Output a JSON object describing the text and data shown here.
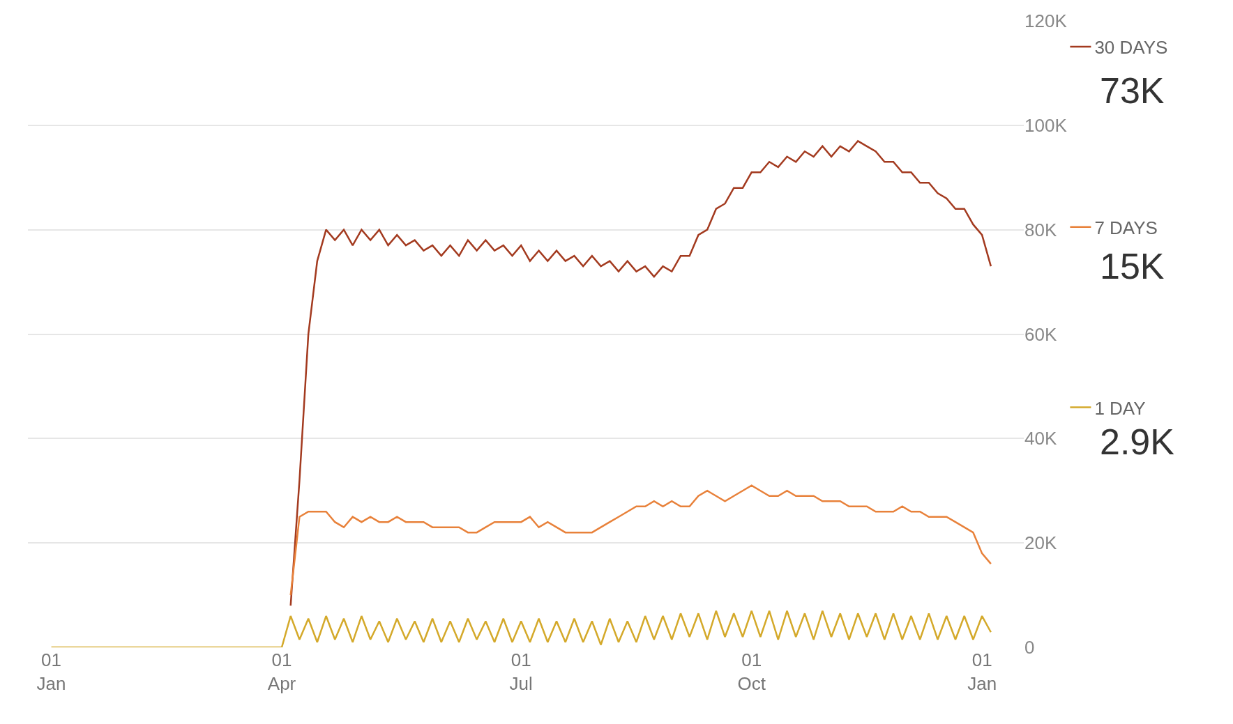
{
  "chart_data": {
    "type": "line",
    "categories": [
      "01\nJan",
      null,
      null,
      null,
      null,
      null,
      null,
      null,
      null,
      null,
      null,
      null,
      null,
      null,
      null,
      null,
      null,
      null,
      null,
      null,
      null,
      null,
      null,
      null,
      null,
      null,
      "01\nApr",
      null,
      null,
      null,
      null,
      null,
      null,
      null,
      null,
      null,
      null,
      null,
      null,
      null,
      null,
      null,
      null,
      null,
      null,
      null,
      null,
      null,
      null,
      null,
      null,
      null,
      null,
      "01\nJul",
      null,
      null,
      null,
      null,
      null,
      null,
      null,
      null,
      null,
      null,
      null,
      null,
      null,
      null,
      null,
      null,
      null,
      null,
      null,
      null,
      null,
      null,
      null,
      null,
      null,
      "01\nOct",
      null,
      null,
      null,
      null,
      null,
      null,
      null,
      null,
      null,
      null,
      null,
      null,
      null,
      null,
      null,
      null,
      null,
      null,
      null,
      null,
      null,
      null,
      null,
      null,
      null,
      "01\nJan",
      null
    ],
    "ylim": [
      0,
      120
    ],
    "yticks": [
      0,
      {
        "value": 20,
        "label": "20K"
      },
      {
        "value": 40,
        "label": "40K"
      },
      {
        "value": 60,
        "label": "60K"
      },
      {
        "value": 80,
        "label": "80K"
      },
      {
        "value": 100,
        "label": "100K"
      },
      {
        "value": 120,
        "label": "120K"
      }
    ],
    "grid": "y",
    "legend": "right",
    "annotations": [
      "73K",
      "15K",
      "2.9K"
    ],
    "series": [
      {
        "name": "30 DAYS",
        "color": "#a33a1f",
        "values": [
          null,
          null,
          null,
          null,
          null,
          null,
          null,
          null,
          null,
          null,
          null,
          null,
          null,
          null,
          null,
          null,
          null,
          null,
          null,
          null,
          null,
          null,
          null,
          null,
          null,
          null,
          null,
          8,
          32,
          60,
          74,
          80,
          78,
          80,
          77,
          80,
          78,
          80,
          77,
          79,
          77,
          78,
          76,
          77,
          75,
          77,
          75,
          78,
          76,
          78,
          76,
          77,
          75,
          77,
          74,
          76,
          74,
          76,
          74,
          75,
          73,
          75,
          73,
          74,
          72,
          74,
          72,
          73,
          71,
          73,
          72,
          75,
          75,
          79,
          80,
          84,
          85,
          88,
          88,
          91,
          91,
          93,
          92,
          94,
          93,
          95,
          94,
          96,
          94,
          96,
          95,
          97,
          96,
          95,
          93,
          93,
          91,
          91,
          89,
          89,
          87,
          86,
          84,
          84,
          81,
          79,
          73
        ]
      },
      {
        "name": "7 DAYS",
        "color": "#e8813a",
        "values": [
          null,
          null,
          null,
          null,
          null,
          null,
          null,
          null,
          null,
          null,
          null,
          null,
          null,
          null,
          null,
          null,
          null,
          null,
          null,
          null,
          null,
          null,
          null,
          null,
          null,
          null,
          null,
          10,
          25,
          26,
          26,
          26,
          24,
          23,
          25,
          24,
          25,
          24,
          24,
          25,
          24,
          24,
          24,
          23,
          23,
          23,
          23,
          22,
          22,
          23,
          24,
          24,
          24,
          24,
          25,
          23,
          24,
          23,
          22,
          22,
          22,
          22,
          23,
          24,
          25,
          26,
          27,
          27,
          28,
          27,
          28,
          27,
          27,
          29,
          30,
          29,
          28,
          29,
          30,
          31,
          30,
          29,
          29,
          30,
          29,
          29,
          29,
          28,
          28,
          28,
          27,
          27,
          27,
          26,
          26,
          26,
          27,
          26,
          26,
          25,
          25,
          25,
          24,
          23,
          22,
          18,
          16
        ]
      },
      {
        "name": "1 DAY",
        "color": "#d4a92a",
        "values": [
          0,
          0,
          0,
          0,
          0,
          0,
          0,
          0,
          0,
          0,
          0,
          0,
          0,
          0,
          0,
          0,
          0,
          0,
          0,
          0,
          0,
          0,
          0,
          0,
          0,
          0,
          0,
          6,
          1.5,
          5.5,
          1,
          6,
          1.5,
          5.5,
          1,
          6,
          1.5,
          5,
          1,
          5.5,
          1.5,
          5,
          1,
          5.5,
          1,
          5,
          1,
          5.5,
          1.5,
          5,
          1,
          5.5,
          1,
          5,
          1,
          5.5,
          1,
          5,
          1,
          5.5,
          1,
          5,
          0.5,
          5.5,
          1,
          5,
          1,
          6,
          1.5,
          6,
          1.5,
          6.5,
          2,
          6.5,
          1.5,
          7,
          2,
          6.5,
          2,
          7,
          2,
          7,
          1.5,
          7,
          2,
          6.5,
          1.5,
          7,
          2,
          6.5,
          1.5,
          6.5,
          2,
          6.5,
          1.5,
          6.5,
          1.5,
          6,
          1.5,
          6.5,
          1.5,
          6,
          1.5,
          6,
          1.5,
          6,
          2.9
        ]
      }
    ]
  }
}
